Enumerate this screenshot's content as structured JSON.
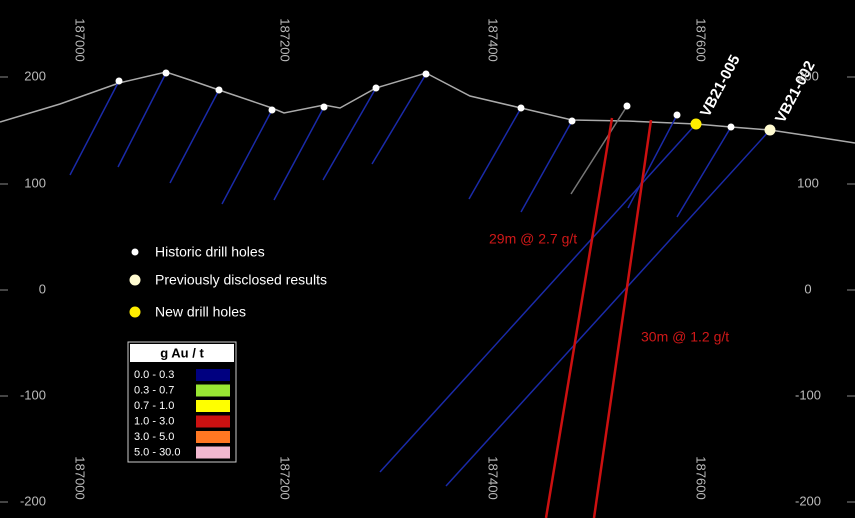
{
  "x_labels": [
    "187000",
    "187200",
    "187400",
    "187600"
  ],
  "y_labels": [
    "200",
    "100",
    "0",
    "-100",
    "-200"
  ],
  "holes": [
    {
      "label": "VB21-005"
    },
    {
      "label": "VB21-002"
    }
  ],
  "intercepts": [
    "29m @ 2.7 g/t",
    "30m @ 1.2 g/t"
  ],
  "legend": [
    "Historic drill holes",
    "Previously disclosed results",
    "New drill holes"
  ],
  "grade_legend": {
    "title": "g Au / t",
    "items": [
      {
        "label": "0.0 - 0.3",
        "color": "#000080"
      },
      {
        "label": "0.3 - 0.7",
        "color": "#99e633"
      },
      {
        "label": "0.7 - 1.0",
        "color": "#ffff00"
      },
      {
        "label": "1.0 - 3.0",
        "color": "#cc1111"
      },
      {
        "label": "3.0 - 5.0",
        "color": "#ff7722"
      },
      {
        "label": "5.0 - 30.0",
        "color": "#f2b8d0"
      }
    ]
  }
}
